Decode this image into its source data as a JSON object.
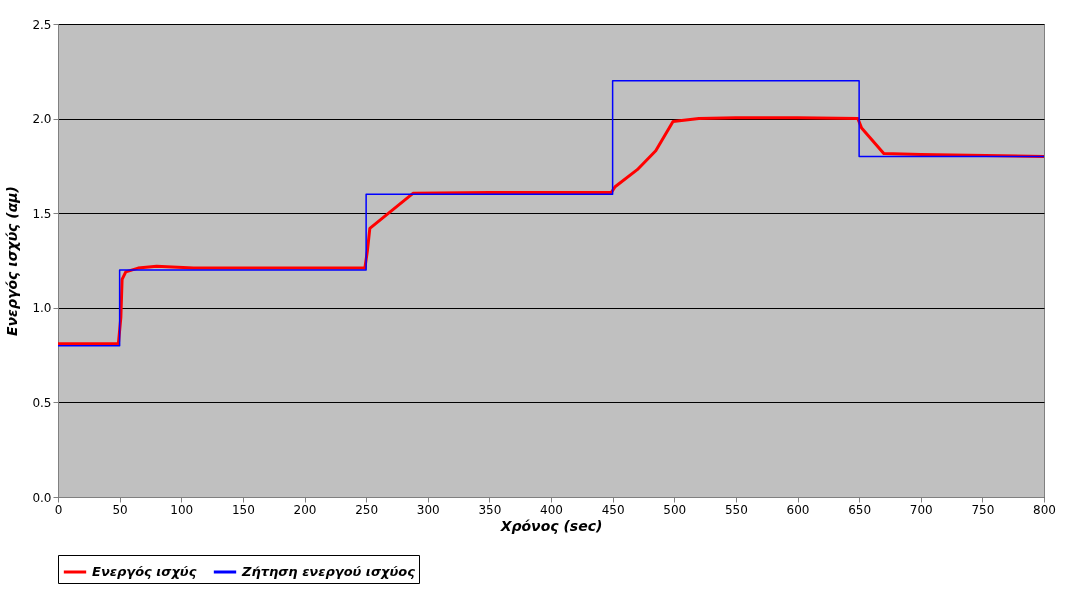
{
  "chart_data": {
    "type": "line",
    "xlabel": "Χρόνος (sec)",
    "ylabel": "Ενεργός ισχύς (αμ)",
    "xlim": [
      0,
      800
    ],
    "xticks": [
      0,
      50,
      100,
      150,
      200,
      250,
      300,
      350,
      400,
      450,
      500,
      550,
      600,
      650,
      700,
      750,
      800
    ],
    "ylim": [
      0,
      2.5
    ],
    "yticks": [
      {
        "value": 0,
        "label": "0.0"
      },
      0.5,
      {
        "value": 1,
        "label": "1.0"
      },
      1.5,
      {
        "value": 2,
        "label": "2.0"
      },
      2.5
    ],
    "grid": "y",
    "legend": "bottom",
    "marker": "none",
    "line_style": "solid",
    "series": [
      {
        "name": "Ενεργός ισχύς",
        "color": "#ff0000",
        "x": [
          0,
          49,
          51,
          52,
          55,
          65,
          80,
          110,
          249,
          251,
          253,
          270,
          288,
          350,
          449,
          452,
          470,
          485,
          499,
          520,
          550,
          600,
          649,
          652,
          670,
          700,
          800
        ],
        "values": [
          0.81,
          0.81,
          0.95,
          1.15,
          1.19,
          1.21,
          1.22,
          1.21,
          1.21,
          1.3,
          1.42,
          1.51,
          1.605,
          1.61,
          1.61,
          1.64,
          1.73,
          1.83,
          1.985,
          2.0,
          2.005,
          2.005,
          2.0,
          1.95,
          1.815,
          1.81,
          1.8
        ]
      },
      {
        "name": "Ζήτηση ενεργού ισχύος",
        "color": "#0000ff",
        "x": [
          0,
          50,
          50,
          250,
          250,
          450,
          450,
          650,
          650,
          800
        ],
        "values": [
          0.8,
          0.8,
          1.2,
          1.2,
          1.6,
          1.6,
          2.2,
          2.2,
          1.8,
          1.8
        ]
      }
    ]
  }
}
